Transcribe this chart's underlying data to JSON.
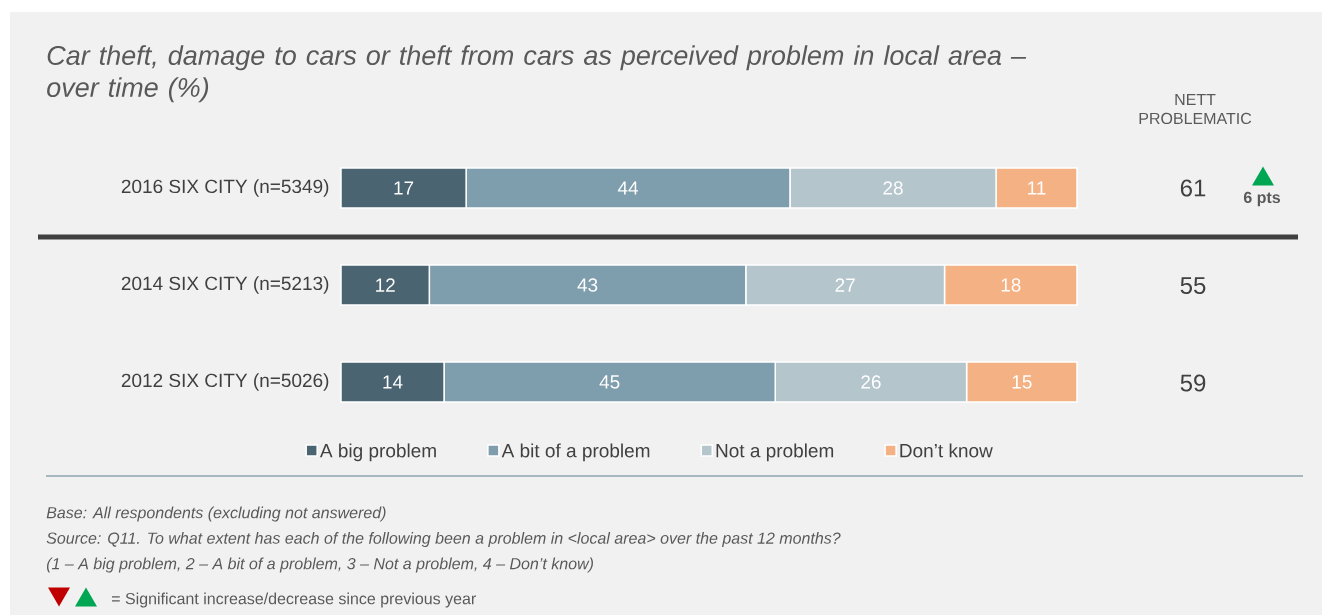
{
  "chart_data": {
    "type": "bar",
    "orientation": "horizontal",
    "stacked": true,
    "title": "Car theft, damage to cars or theft from cars as perceived problem in local area – over time (%)",
    "categories": [
      "2016 SIX CITY (n=5349)",
      "2014 SIX CITY (n=5213)",
      "2012 SIX CITY (n=5026)"
    ],
    "series": [
      {
        "name": "A big problem",
        "color": "#4a6472",
        "values": [
          17,
          12,
          14
        ]
      },
      {
        "name": "A bit of a problem",
        "color": "#7f9ead",
        "values": [
          44,
          43,
          45
        ]
      },
      {
        "name": "Not a problem",
        "color": "#b4c5cc",
        "values": [
          28,
          27,
          26
        ]
      },
      {
        "name": "Don’t know",
        "color": "#f4b183",
        "values": [
          11,
          18,
          15
        ]
      }
    ],
    "data_labels": true,
    "legend": "bottom",
    "tick_labels": "y",
    "annotations": [
      "NETT PROBLEMATIC",
      "61",
      "55",
      "59",
      "6 pts",
      "Base: All respondents (excluding not answered)",
      "Source: Q11. To what extent has each of the following been a problem in <local area> over the past 12 months?",
      "(1 – A big problem, 2 – A bit of a problem, 3 – Not a problem, 4 – Don’t know)",
      "= Significant increase/decrease since previous year"
    ]
  }
}
